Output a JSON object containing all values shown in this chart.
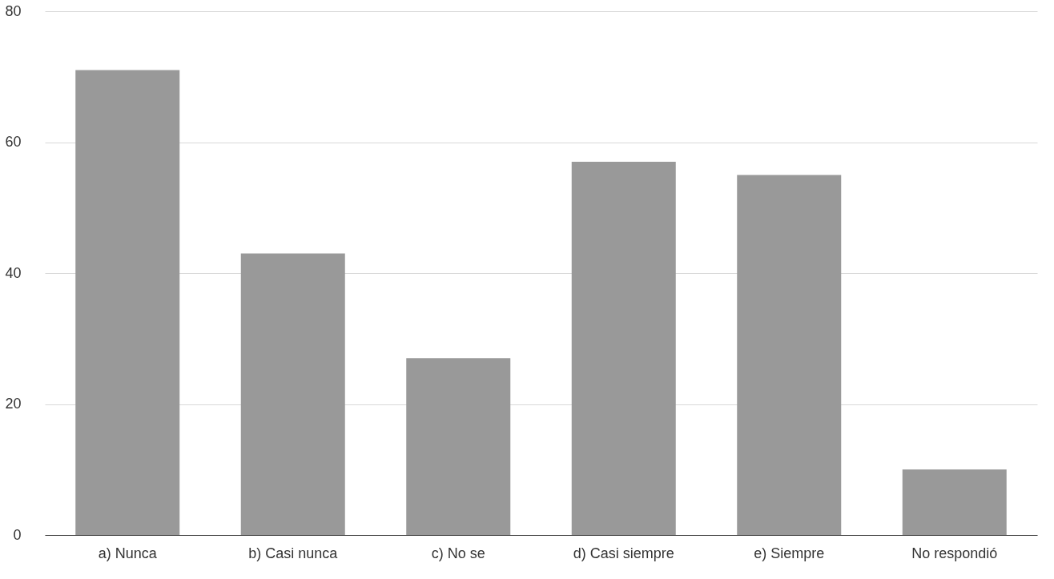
{
  "chart_data": {
    "type": "bar",
    "categories": [
      "a) Nunca",
      "b) Casi nunca",
      "c) No se",
      "d) Casi siempre",
      "e) Siempre",
      "No respondió"
    ],
    "values": [
      71,
      43,
      27,
      57,
      55,
      10
    ],
    "color": "#999999",
    "ylim": [
      0,
      80
    ],
    "yticks": [
      0,
      20,
      40,
      60,
      80
    ],
    "grid": "y"
  }
}
